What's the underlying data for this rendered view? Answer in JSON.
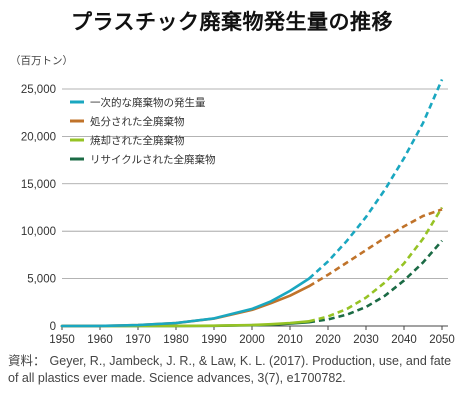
{
  "title": "プラスチック廃棄物発生量の推移",
  "source": {
    "label": "資料：",
    "text": "Geyer, R., Jambeck, J. R., & Law, K. L. (2017). Production, use, and fate of all plastics ever made. Science advances, 3(7), e1700782."
  },
  "chart_data": {
    "type": "line",
    "title": "",
    "xlabel": "",
    "ylabel": "（百万トン）",
    "xlim": [
      1950,
      2050
    ],
    "ylim": [
      0,
      27000
    ],
    "x_ticks": [
      1950,
      1960,
      1970,
      1980,
      1990,
      2000,
      2010,
      2020,
      2030,
      2040,
      2050
    ],
    "y_ticks": [
      0,
      5000,
      10000,
      15000,
      20000,
      25000
    ],
    "y_tick_labels": [
      "0",
      "5,000",
      "10,000",
      "15,000",
      "20,000",
      "25,000"
    ],
    "grid": "horizontal",
    "legend_position": "top-left",
    "historical_until": 2015,
    "series": [
      {
        "name": "一次的な廃棄物の発生量",
        "color": "#1aa7c0",
        "points": [
          [
            1950,
            0
          ],
          [
            1960,
            15
          ],
          [
            1970,
            100
          ],
          [
            1980,
            320
          ],
          [
            1990,
            800
          ],
          [
            2000,
            1800
          ],
          [
            2005,
            2600
          ],
          [
            2010,
            3700
          ],
          [
            2015,
            5000
          ],
          [
            2020,
            6800
          ],
          [
            2025,
            9000
          ],
          [
            2030,
            11500
          ],
          [
            2035,
            14400
          ],
          [
            2040,
            17700
          ],
          [
            2045,
            21400
          ],
          [
            2050,
            26000
          ]
        ]
      },
      {
        "name": "処分された全廃棄物",
        "color": "#c0732a",
        "points": [
          [
            1950,
            0
          ],
          [
            1960,
            15
          ],
          [
            1970,
            100
          ],
          [
            1980,
            310
          ],
          [
            1990,
            780
          ],
          [
            2000,
            1700
          ],
          [
            2005,
            2400
          ],
          [
            2010,
            3200
          ],
          [
            2015,
            4200
          ],
          [
            2020,
            5400
          ],
          [
            2025,
            6700
          ],
          [
            2030,
            8000
          ],
          [
            2035,
            9300
          ],
          [
            2040,
            10500
          ],
          [
            2045,
            11600
          ],
          [
            2050,
            12300
          ]
        ]
      },
      {
        "name": "焼却された全廃棄物",
        "color": "#96c324",
        "points": [
          [
            1950,
            0
          ],
          [
            1970,
            0
          ],
          [
            1980,
            10
          ],
          [
            1990,
            30
          ],
          [
            2000,
            110
          ],
          [
            2005,
            190
          ],
          [
            2010,
            320
          ],
          [
            2015,
            500
          ],
          [
            2020,
            1000
          ],
          [
            2025,
            1800
          ],
          [
            2030,
            3000
          ],
          [
            2035,
            4600
          ],
          [
            2040,
            6600
          ],
          [
            2045,
            9200
          ],
          [
            2050,
            12500
          ]
        ]
      },
      {
        "name": "リサイクルされた全廃棄物",
        "color": "#1b6b45",
        "points": [
          [
            1950,
            0
          ],
          [
            1970,
            0
          ],
          [
            1980,
            5
          ],
          [
            1990,
            20
          ],
          [
            2000,
            80
          ],
          [
            2005,
            140
          ],
          [
            2010,
            250
          ],
          [
            2015,
            400
          ],
          [
            2020,
            700
          ],
          [
            2025,
            1200
          ],
          [
            2030,
            2000
          ],
          [
            2035,
            3200
          ],
          [
            2040,
            4800
          ],
          [
            2045,
            6700
          ],
          [
            2050,
            9000
          ]
        ]
      }
    ]
  }
}
